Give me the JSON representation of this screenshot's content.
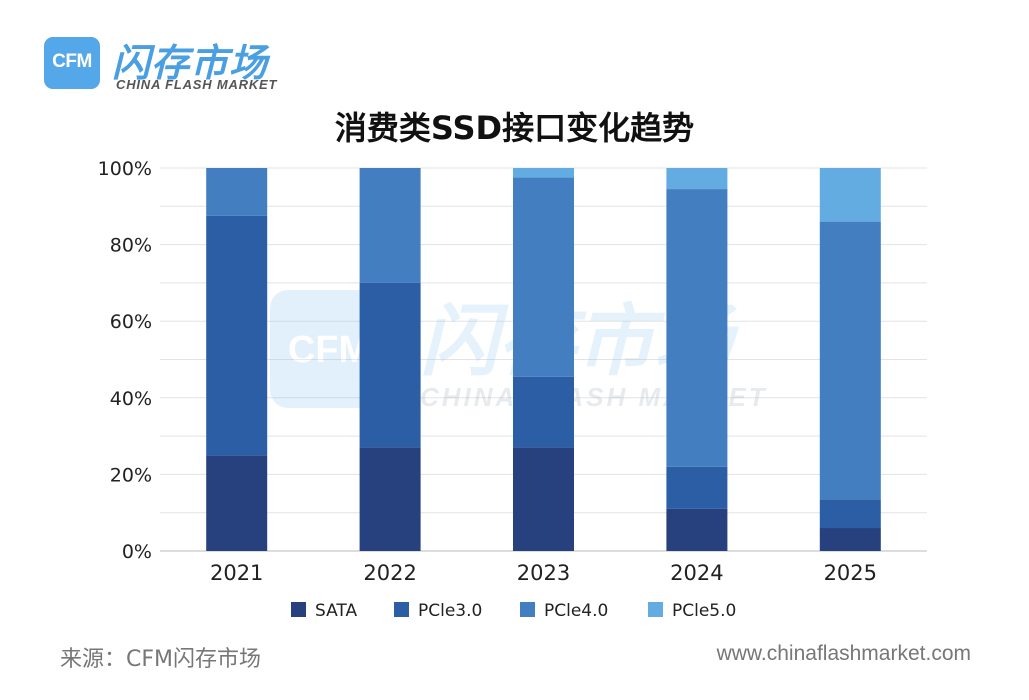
{
  "logo": {
    "mark": "CFM",
    "name_cn": "闪存市场",
    "name_en": "CHINA FLASH MARKET"
  },
  "watermark": {
    "mark": "CFM",
    "name_cn": "闪存市场",
    "name_en": "CHINA FLASH MARKET"
  },
  "footer": {
    "source": "来源：CFM闪存市场",
    "website": "www.chinaflashmarket.com"
  },
  "chart_data": {
    "type": "bar",
    "stacked": true,
    "title": "消费类SSD接口变化趋势",
    "categories": [
      "2021",
      "2022",
      "2023",
      "2024",
      "2025"
    ],
    "series": [
      {
        "name": "SATA",
        "color": "#27417f",
        "values": [
          25,
          27,
          27,
          11,
          6
        ]
      },
      {
        "name": "PCle3.0",
        "color": "#2c5ea6",
        "values": [
          62.5,
          43,
          18.5,
          11,
          7.5
        ]
      },
      {
        "name": "PCle4.0",
        "color": "#427ec0",
        "values": [
          12.5,
          30,
          52,
          72.5,
          72.5
        ]
      },
      {
        "name": "PCle5.0",
        "color": "#63ace2",
        "values": [
          0,
          0,
          2.5,
          5.5,
          14
        ]
      }
    ],
    "ylim": [
      0,
      100
    ],
    "yticks": [
      "0%",
      "20%",
      "40%",
      "60%",
      "80%",
      "100%"
    ],
    "ytick_values": [
      0,
      20,
      40,
      60,
      80,
      100
    ],
    "grid": true,
    "legend_position": "bottom"
  }
}
